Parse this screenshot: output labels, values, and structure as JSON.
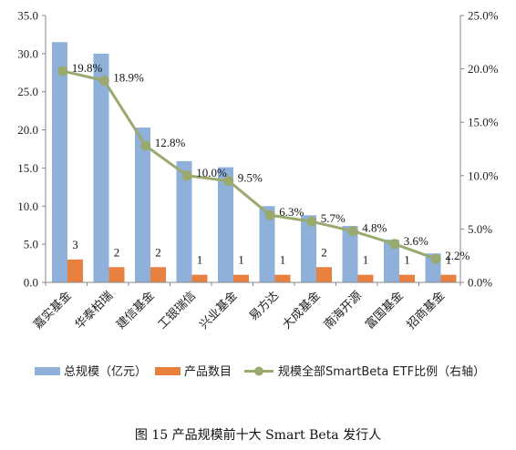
{
  "chart_data": {
    "type": "bar",
    "title": "",
    "categories": [
      "嘉实基金",
      "华泰柏瑞",
      "建信基金",
      "工银瑞信",
      "兴业基金",
      "易方达",
      "大成基金",
      "南海开源",
      "富国基金",
      "招商基金"
    ],
    "series": [
      {
        "name": "总规模（亿元）",
        "type": "bar",
        "axis": "left",
        "color": "#8eb0d9",
        "values": [
          31.5,
          30.0,
          20.3,
          15.9,
          15.1,
          10.0,
          8.8,
          7.4,
          5.6,
          3.8
        ]
      },
      {
        "name": "产品数目",
        "type": "bar",
        "axis": "left",
        "color": "#e8803f",
        "values": [
          3,
          2,
          2,
          1,
          1,
          1,
          2,
          1,
          1,
          1
        ],
        "labels": [
          "3",
          "2",
          "2",
          "1",
          "1",
          "1",
          "2",
          "1",
          "1",
          "1"
        ]
      },
      {
        "name": "规模全部SmartBeta ETF比例（右轴）",
        "type": "line",
        "axis": "right",
        "color": "#9aaa6e",
        "values": [
          19.8,
          18.9,
          12.8,
          10.0,
          9.5,
          6.3,
          5.7,
          4.8,
          3.6,
          2.2
        ],
        "labels": [
          "19.8%",
          "18.9%",
          "12.8%",
          "10.0%",
          "9.5%",
          "6.3%",
          "5.7%",
          "4.8%",
          "3.6%",
          "2.2%"
        ]
      }
    ],
    "left_axis": {
      "ylim": [
        0,
        35
      ],
      "ticks": [
        "0.0",
        "5.0",
        "10.0",
        "15.0",
        "20.0",
        "25.0",
        "30.0",
        "35.0"
      ]
    },
    "right_axis": {
      "ylim": [
        0,
        25
      ],
      "ticks": [
        "0.0%",
        "5.0%",
        "10.0%",
        "15.0%",
        "20.0%",
        "25.0%"
      ]
    },
    "grid": false,
    "legend_position": "bottom"
  },
  "caption": "图 15 产品规模前十大 Smart Beta 发行人"
}
